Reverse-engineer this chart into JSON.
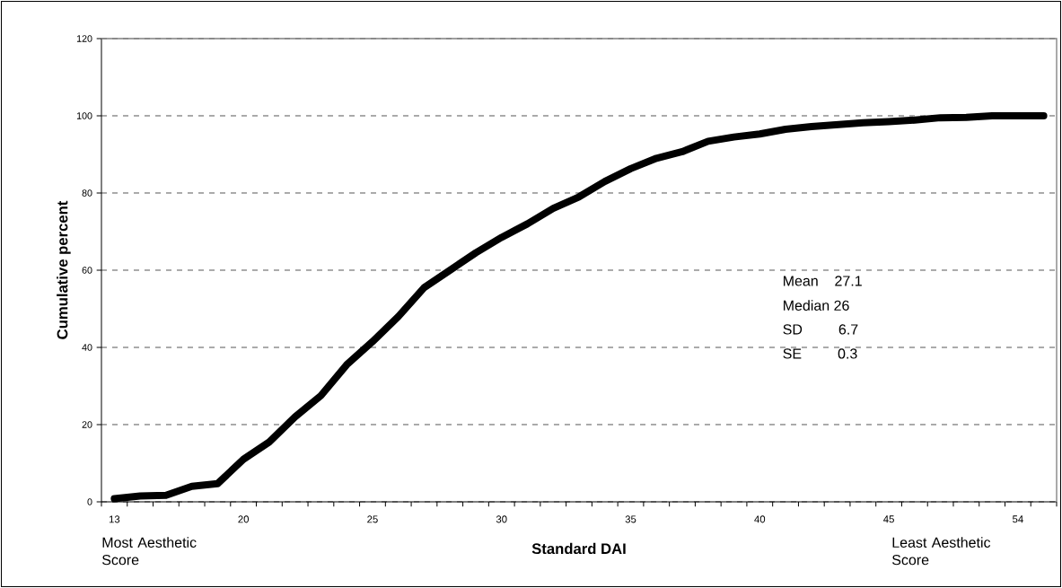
{
  "chart_data": {
    "type": "line",
    "xlabel": "Standard DAI",
    "ylabel": "Cumulative percent",
    "categories": [
      "13",
      null,
      null,
      null,
      null,
      "20",
      null,
      null,
      null,
      null,
      "25",
      null,
      null,
      null,
      null,
      "30",
      null,
      null,
      null,
      null,
      "35",
      null,
      null,
      null,
      null,
      "40",
      null,
      null,
      null,
      null,
      "45",
      null,
      null,
      null,
      null,
      "54",
      null
    ],
    "series": [
      {
        "color": "#000000",
        "values": [
          0.8,
          1.5,
          1.7,
          4,
          4.7,
          11,
          15.5,
          22,
          27.5,
          35.5,
          41.5,
          48,
          55.5,
          60,
          64.5,
          68.5,
          72,
          76,
          79,
          83,
          86.3,
          89,
          90.7,
          93.4,
          94.5,
          95.3,
          96.5,
          97.2,
          97.7,
          98.2,
          98.5,
          98.9,
          99.5,
          99.6,
          100,
          100,
          100
        ]
      }
    ],
    "ylim": [
      0,
      120
    ],
    "yticks": [
      0,
      20,
      40,
      60,
      80,
      100,
      120
    ],
    "grid": "y",
    "line_style": "solid",
    "annotations": [
      "Most Aesthetic Score",
      "Least Aesthetic Score",
      "Mean    27.1",
      "Median 26",
      "SD         6.7",
      "SE         0.3"
    ]
  }
}
